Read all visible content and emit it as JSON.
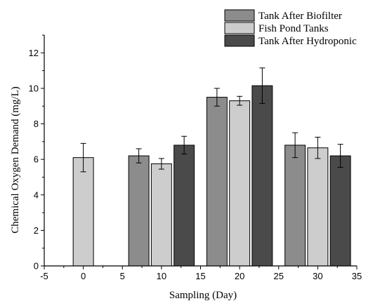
{
  "chart_data": {
    "type": "bar",
    "title": "",
    "xlabel": "Sampling (Day)",
    "ylabel": "Chemical Oxygen Demand (mg/L)",
    "xlim": [
      -5,
      35
    ],
    "ylim": [
      0,
      13
    ],
    "x_ticks": [
      -5,
      0,
      5,
      10,
      15,
      20,
      25,
      30,
      35
    ],
    "y_ticks": [
      0,
      2,
      4,
      6,
      8,
      10,
      12
    ],
    "grid": false,
    "legend_position": "top-right",
    "categories": [
      0,
      10,
      20,
      30
    ],
    "series": [
      {
        "name": "Tank After Biofilter",
        "color": "#8c8c8c",
        "values": [
          null,
          6.2,
          9.5,
          6.8
        ],
        "errors": [
          null,
          0.4,
          0.5,
          0.7
        ]
      },
      {
        "name": "Fish Pond Tanks",
        "color": "#cdcdcd",
        "values": [
          6.1,
          5.75,
          9.3,
          6.65
        ],
        "errors": [
          0.8,
          0.3,
          0.25,
          0.6
        ]
      },
      {
        "name": "Tank After Hydroponic",
        "color": "#4a4a4a",
        "values": [
          null,
          6.8,
          10.15,
          6.2
        ],
        "errors": [
          null,
          0.5,
          1.0,
          0.65
        ]
      }
    ]
  }
}
